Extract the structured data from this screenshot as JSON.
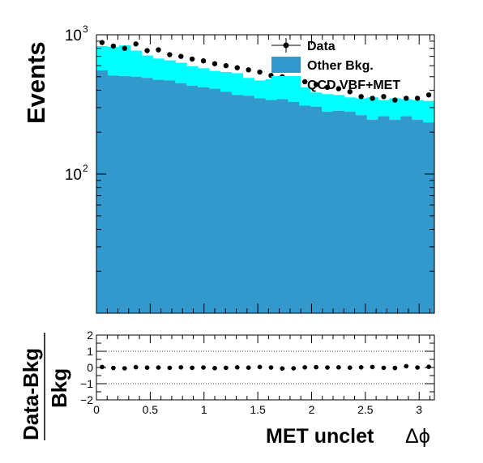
{
  "chart_data": [
    {
      "type": "bar",
      "yscale": "log",
      "ylabel": "Events",
      "xlim": [
        0,
        3.1416
      ],
      "ylim": [
        10,
        1000
      ],
      "y_ticks": [
        {
          "base": "10",
          "exp": "2",
          "value": 100
        },
        {
          "base": "10",
          "exp": "3",
          "value": 1000
        }
      ],
      "bin_centers": [
        0.0524,
        0.1571,
        0.2618,
        0.3665,
        0.4712,
        0.576,
        0.6807,
        0.7854,
        0.8901,
        0.9948,
        1.0996,
        1.2043,
        1.309,
        1.4137,
        1.5184,
        1.6232,
        1.7279,
        1.8326,
        1.9373,
        2.042,
        2.1468,
        2.2515,
        2.3562,
        2.4609,
        2.5656,
        2.6704,
        2.7751,
        2.8798,
        2.9845,
        3.0892
      ],
      "series": [
        {
          "name": "Other Bkg.",
          "color": "#3399cc",
          "values": [
            555,
            510,
            505,
            500,
            490,
            475,
            470,
            450,
            430,
            420,
            410,
            390,
            370,
            365,
            350,
            340,
            345,
            330,
            310,
            305,
            280,
            285,
            280,
            265,
            245,
            260,
            245,
            260,
            245,
            235
          ]
        },
        {
          "name": "QCD VBF+MET",
          "color": "#00ffff",
          "values": [
            275,
            310,
            335,
            270,
            220,
            200,
            185,
            180,
            165,
            155,
            140,
            150,
            160,
            125,
            120,
            140,
            110,
            100,
            110,
            80,
            95,
            85,
            75,
            85,
            110,
            80,
            105,
            85,
            95,
            100
          ]
        }
      ],
      "data_points": {
        "name": "Data",
        "values": [
          880,
          830,
          800,
          860,
          770,
          780,
          720,
          700,
          670,
          650,
          620,
          600,
          580,
          560,
          540,
          510,
          500,
          470,
          460,
          440,
          420,
          410,
          390,
          360,
          350,
          360,
          340,
          350,
          350,
          370
        ]
      },
      "legend": {
        "position": "top-right",
        "entries": [
          {
            "label": "Data",
            "symbol": "marker"
          },
          {
            "label": "Other Bkg.",
            "symbol": "fill",
            "color": "#3399cc"
          },
          {
            "label": "QCD VBF+MET",
            "symbol": "fill",
            "color": "#00ffff"
          }
        ]
      }
    },
    {
      "type": "scatter",
      "ylabel_top": "Data-Bkg",
      "ylabel_bottom": "Bkg",
      "xlabel": "MET unclet",
      "xlabel_symbol": "Δϕ",
      "xlim": [
        0,
        3.1416
      ],
      "ylim": [
        -2,
        2
      ],
      "x_ticks": [
        "0",
        "0.5",
        "1",
        "1.5",
        "2",
        "2.5",
        "3"
      ],
      "y_ticks": [
        "2",
        "1",
        "0",
        "−1",
        "−2"
      ],
      "reference_lines": [
        1,
        -1
      ],
      "points": [
        0.03,
        -0.03,
        -0.05,
        0.02,
        -0.01,
        0.0,
        -0.02,
        0.01,
        -0.02,
        0.0,
        -0.04,
        -0.02,
        0.01,
        -0.01,
        0.03,
        0.0,
        -0.06,
        -0.05,
        0.01,
        0.02,
        0.0,
        0.01,
        -0.01,
        0.01,
        0.03,
        -0.02,
        -0.03,
        0.08,
        0.0,
        0.04
      ]
    }
  ]
}
